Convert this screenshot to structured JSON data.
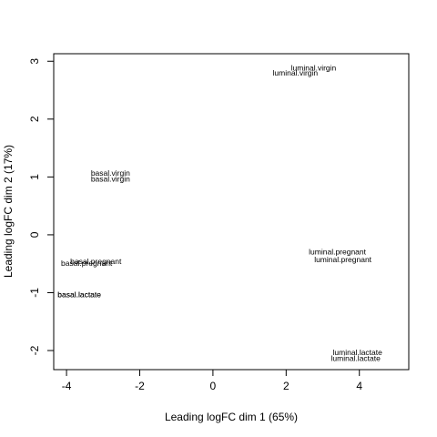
{
  "chart_data": {
    "type": "scatter",
    "title": "",
    "xlabel": "Leading logFC dim 1 (65%)",
    "ylabel": "Leading logFC dim 2 (17%)",
    "xlim": [
      -4.35,
      5.35
    ],
    "ylim": [
      -2.33,
      3.13
    ],
    "xticks": [
      -4,
      -2,
      0,
      2,
      4
    ],
    "yticks": [
      -2,
      -1,
      0,
      1,
      2,
      3
    ],
    "grid": false,
    "points": [
      {
        "label": "luminal.virgin",
        "x": 2.75,
        "y": 2.89
      },
      {
        "label": "luminal.virgin",
        "x": 2.25,
        "y": 2.8
      },
      {
        "label": "basal.virgin",
        "x": -2.8,
        "y": 1.07
      },
      {
        "label": "basal.virgin",
        "x": -2.8,
        "y": 0.97
      },
      {
        "label": "luminal.pregnant",
        "x": 3.4,
        "y": -0.29
      },
      {
        "label": "luminal.pregnant",
        "x": 3.55,
        "y": -0.43
      },
      {
        "label": "basal.pregnant",
        "x": -3.2,
        "y": -0.46
      },
      {
        "label": "basal.pregnant",
        "x": -3.45,
        "y": -0.49
      },
      {
        "label": "basal.lactate",
        "x": -3.65,
        "y": -1.03
      },
      {
        "label": "basal.lactate",
        "x": -3.65,
        "y": -1.03
      },
      {
        "label": "luminal.lactate",
        "x": 3.95,
        "y": -2.03
      },
      {
        "label": "luminal.lactate",
        "x": 3.9,
        "y": -2.13
      }
    ]
  }
}
